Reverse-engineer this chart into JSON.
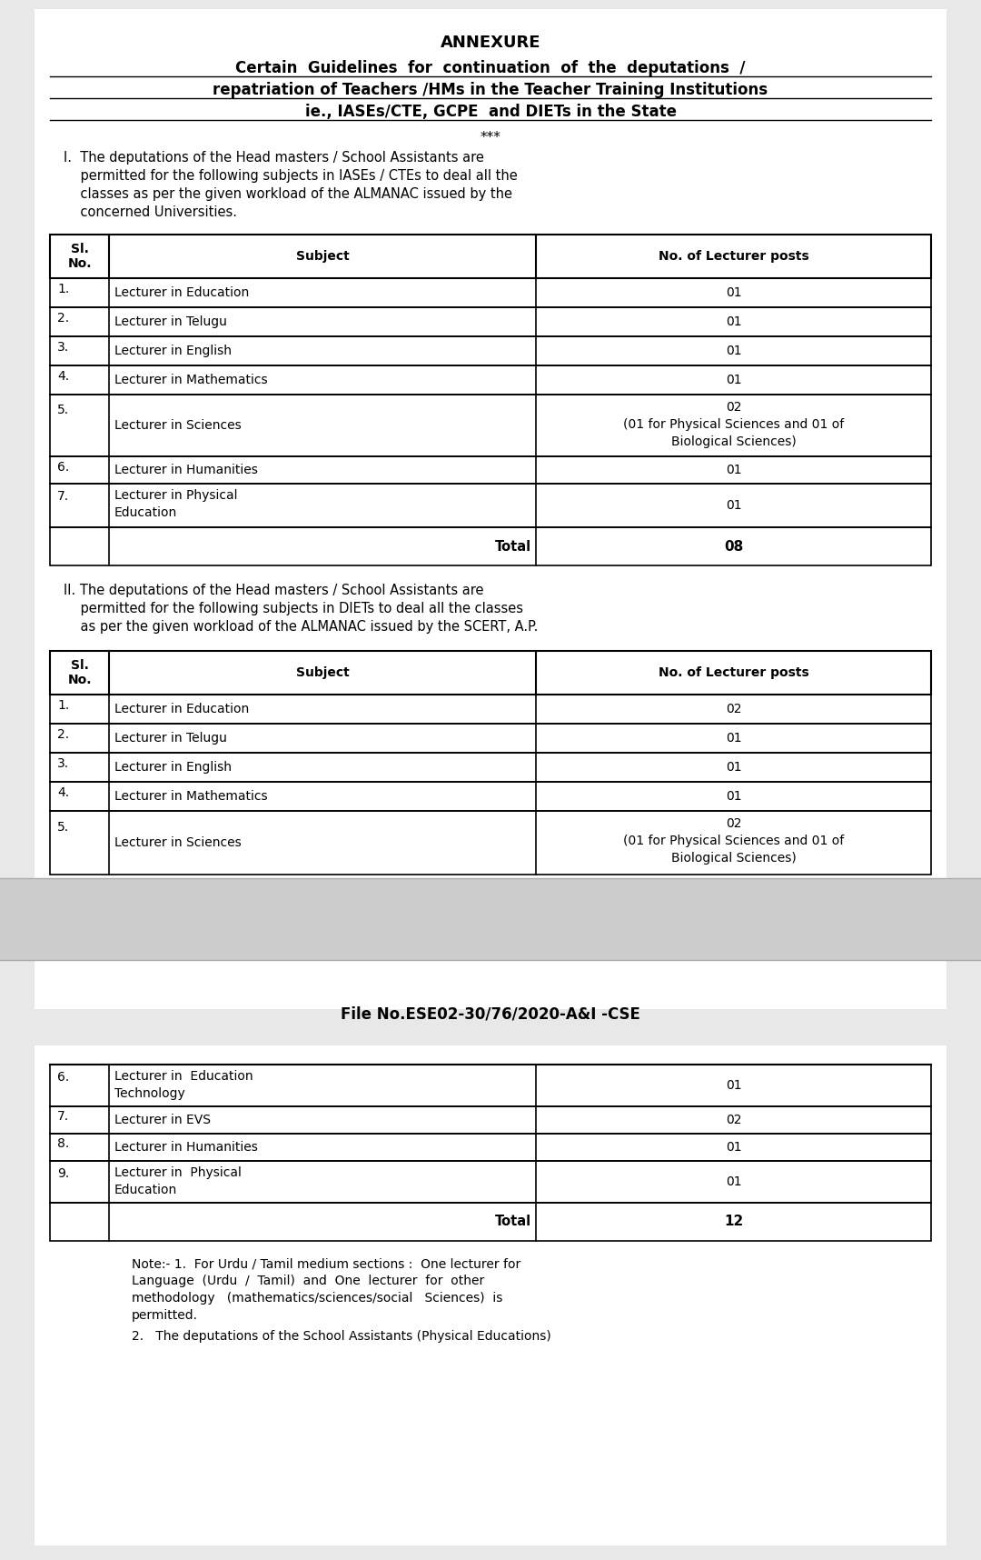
{
  "bg_color": "#e8e8e8",
  "page_bg": "#ffffff",
  "annexure_title": "ANNEXURE",
  "subtitle_lines": [
    "Certain  Guidelines  for  continuation  of  the  deputations  /",
    "repatriation of Teachers /HMs in the Teacher Training Institutions",
    "ie., IASEs/CTE, GCPE  and DIETs in the State"
  ],
  "stars": "***",
  "para1_lines": [
    "I.  The deputations of the Head masters / School Assistants are",
    "    permitted for the following subjects in IASEs / CTEs to deal all the",
    "    classes as per the given workload of the ALMANAC issued by the",
    "    concerned Universities."
  ],
  "table1_header": [
    "Sl.\nNo.",
    "Subject",
    "No. of Lecturer posts"
  ],
  "table1_rows": [
    [
      "1.",
      "Lecturer in Education",
      "01"
    ],
    [
      "2.",
      "Lecturer in Telugu",
      "01"
    ],
    [
      "3.",
      "Lecturer in English",
      "01"
    ],
    [
      "4.",
      "Lecturer in Mathematics",
      "01"
    ],
    [
      "5.",
      "Lecturer in Sciences",
      "02\n(01 for Physical Sciences and 01 of\nBiological Sciences)"
    ],
    [
      "6.",
      "Lecturer in Humanities",
      "01"
    ],
    [
      "7.",
      "Lecturer in Physical\nEducation",
      "01"
    ],
    [
      "",
      "Total",
      "08"
    ]
  ],
  "para2_lines": [
    "II. The deputations of the Head masters / School Assistants are",
    "    permitted for the following subjects in DIETs to deal all the classes",
    "    as per the given workload of the ALMANAC issued by the SCERT, A.P."
  ],
  "table2_header": [
    "Sl.\nNo.",
    "Subject",
    "No. of Lecturer posts"
  ],
  "table2_rows": [
    [
      "1.",
      "Lecturer in Education",
      "02"
    ],
    [
      "2.",
      "Lecturer in Telugu",
      "01"
    ],
    [
      "3.",
      "Lecturer in English",
      "01"
    ],
    [
      "4.",
      "Lecturer in Mathematics",
      "01"
    ],
    [
      "5.",
      "Lecturer in Sciences",
      "02\n(01 for Physical Sciences and 01 of\nBiological Sciences)"
    ]
  ],
  "file_no": "File No.ESE02-30/76/2020-A&I -CSE",
  "table3_rows": [
    [
      "6.",
      "Lecturer in  Education\nTechnology",
      "01"
    ],
    [
      "7.",
      "Lecturer in EVS",
      "02"
    ],
    [
      "8.",
      "Lecturer in Humanities",
      "01"
    ],
    [
      "9.",
      "Lecturer in  Physical\nEducation",
      "01"
    ],
    [
      "",
      "Total",
      "12"
    ]
  ],
  "note_lines": [
    "Note:- 1.  For Urdu / Tamil medium sections :  One lecturer for",
    "Language  (Urdu  /  Tamil)  and  One  lecturer  for  other",
    "methodology   (mathematics/sciences/social   Sciences)  is",
    "permitted."
  ],
  "note2_text": "2.   The deputations of the School Assistants (Physical Educations)"
}
